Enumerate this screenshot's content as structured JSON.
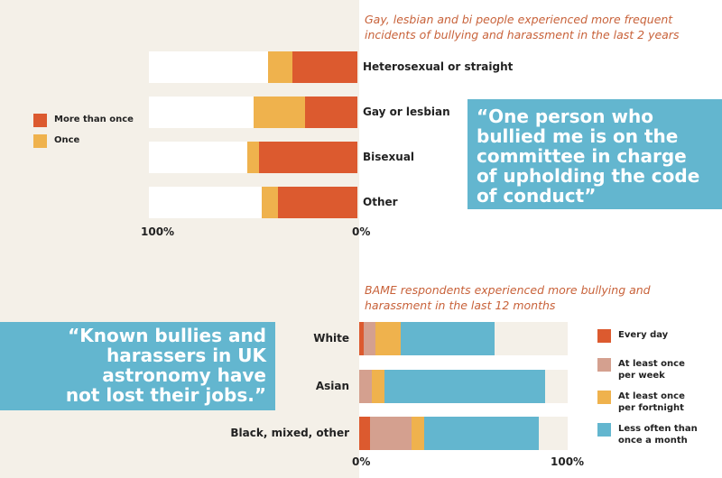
{
  "colors": {
    "every_day": "#dc5a2f",
    "weekly": "#d4a08f",
    "fortnightly": "#efb24d",
    "monthly": "#63b6cf",
    "more_than_once": "#dc5a2f",
    "once": "#efb24d",
    "quote_bg": "#63b6cf",
    "track": "#f4f0e8"
  },
  "quotes": {
    "top": "“One person who bullied me is on the committee in charge of upholding the code of conduct”",
    "bottom": "“Known bullies and harassers in UK astronomy have not lost their jobs.”"
  },
  "chart_data": [
    {
      "type": "bar",
      "orientation": "horizontal-stacked",
      "title": "Gay, lesbian and bi people experienced more frequent incidents of bullying and harassment in the last 2 years",
      "categories": [
        "Heterosexual or straight",
        "Gay or lesbian",
        "Bisexual",
        "Other"
      ],
      "series": [
        {
          "name": "More than once",
          "values": [
            31,
            25,
            47,
            38
          ]
        },
        {
          "name": "Once",
          "values": [
            12,
            25,
            6,
            8
          ]
        }
      ],
      "xlim": [
        100,
        0
      ],
      "tick_labels": [
        "100%",
        "0%"
      ],
      "legend": "left"
    },
    {
      "type": "bar",
      "orientation": "horizontal-stacked",
      "title": "BAME respondents experienced more bullying and harassment in the last 12 months",
      "categories": [
        "White",
        "Asian",
        "Black, mixed, other"
      ],
      "series": [
        {
          "name": "Every day",
          "values": [
            2,
            0,
            5
          ]
        },
        {
          "name": "At least once per week",
          "values": [
            6,
            6,
            20
          ]
        },
        {
          "name": "At least once per fortnight",
          "values": [
            12,
            6,
            6
          ]
        },
        {
          "name": "Less often than once a month",
          "values": [
            45,
            77,
            55
          ]
        }
      ],
      "xlim": [
        0,
        100
      ],
      "tick_labels": [
        "0%",
        "100%"
      ],
      "legend": "right"
    }
  ]
}
